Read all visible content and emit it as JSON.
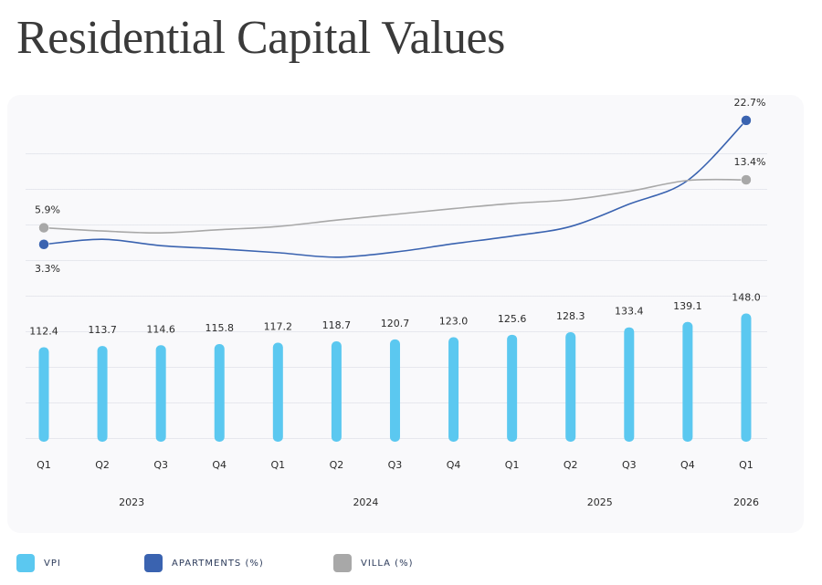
{
  "chart_data": {
    "type": "bar",
    "title": "Residential Capital Values",
    "categories": [
      "Q1",
      "Q2",
      "Q3",
      "Q4",
      "Q1",
      "Q2",
      "Q3",
      "Q4",
      "Q1",
      "Q2",
      "Q3",
      "Q4",
      "Q1"
    ],
    "x_groups": [
      {
        "label": "2023",
        "span": 4
      },
      {
        "label": "2024",
        "span": 4
      },
      {
        "label": "2025",
        "span": 4
      },
      {
        "label": "2026",
        "span": 1
      }
    ],
    "ylim": [
      10,
      363
    ],
    "y2lim": [
      -28,
      24.4
    ],
    "series": [
      {
        "name": "VPI",
        "type": "bar",
        "color": "#5bc8f0",
        "values": [
          112.4,
          113.7,
          114.6,
          115.8,
          117.2,
          118.7,
          120.7,
          123.0,
          125.6,
          128.3,
          133.4,
          139.1,
          148.0
        ],
        "value_labels": [
          "112.4",
          "113.7",
          "114.6",
          "115.8",
          "117.2",
          "118.7",
          "120.7",
          "123.0",
          "125.6",
          "128.3",
          "133.4",
          "139.1",
          "148.0"
        ]
      },
      {
        "name": "APARTMENTS (%)",
        "type": "line",
        "axis": "y2",
        "color": "#3a63b0",
        "values": [
          3.3,
          4.1,
          3.1,
          2.6,
          2.0,
          1.3,
          2.1,
          3.4,
          4.6,
          6.1,
          9.6,
          13.3,
          22.7
        ],
        "value_labels": [
          "3.3%",
          null,
          null,
          null,
          null,
          null,
          null,
          null,
          null,
          null,
          null,
          null,
          "22.7%"
        ]
      },
      {
        "name": "VILLA (%)",
        "type": "line",
        "axis": "y2",
        "color": "#a8a8a8",
        "values": [
          5.9,
          5.4,
          5.1,
          5.6,
          6.1,
          7.1,
          8.0,
          8.9,
          9.7,
          10.3,
          11.6,
          13.3,
          13.4
        ],
        "value_labels": [
          "5.9%",
          null,
          null,
          null,
          null,
          null,
          null,
          null,
          null,
          null,
          null,
          null,
          "13.4%"
        ]
      }
    ]
  }
}
